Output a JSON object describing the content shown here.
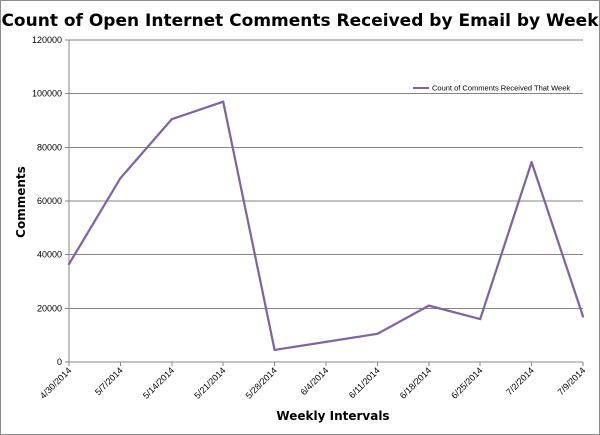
{
  "chart_data": {
    "type": "line",
    "title": "Count of Open Internet Comments Received by Email by Week",
    "xlabel": "Weekly Intervals",
    "ylabel": "Comments",
    "categories": [
      "4/30/2014",
      "5/7/2014",
      "5/14/2014",
      "5/21/2014",
      "5/28/2014",
      "6/4/2014",
      "6/11/2014",
      "6/18/2014",
      "6/25/2014",
      "7/2/2014",
      "7/9/2014"
    ],
    "series": [
      {
        "name": "Count of Comments Received That Week",
        "values": [
          36500,
          68500,
          90500,
          97000,
          4500,
          7500,
          10500,
          21000,
          16000,
          74500,
          17000
        ]
      }
    ],
    "ylim": [
      0,
      120000
    ],
    "yticks": [
      "0",
      "20000",
      "40000",
      "60000",
      "80000",
      "100000",
      "120000"
    ],
    "grid": true,
    "legend_position": "top-right",
    "line_color": "#8064a2"
  }
}
